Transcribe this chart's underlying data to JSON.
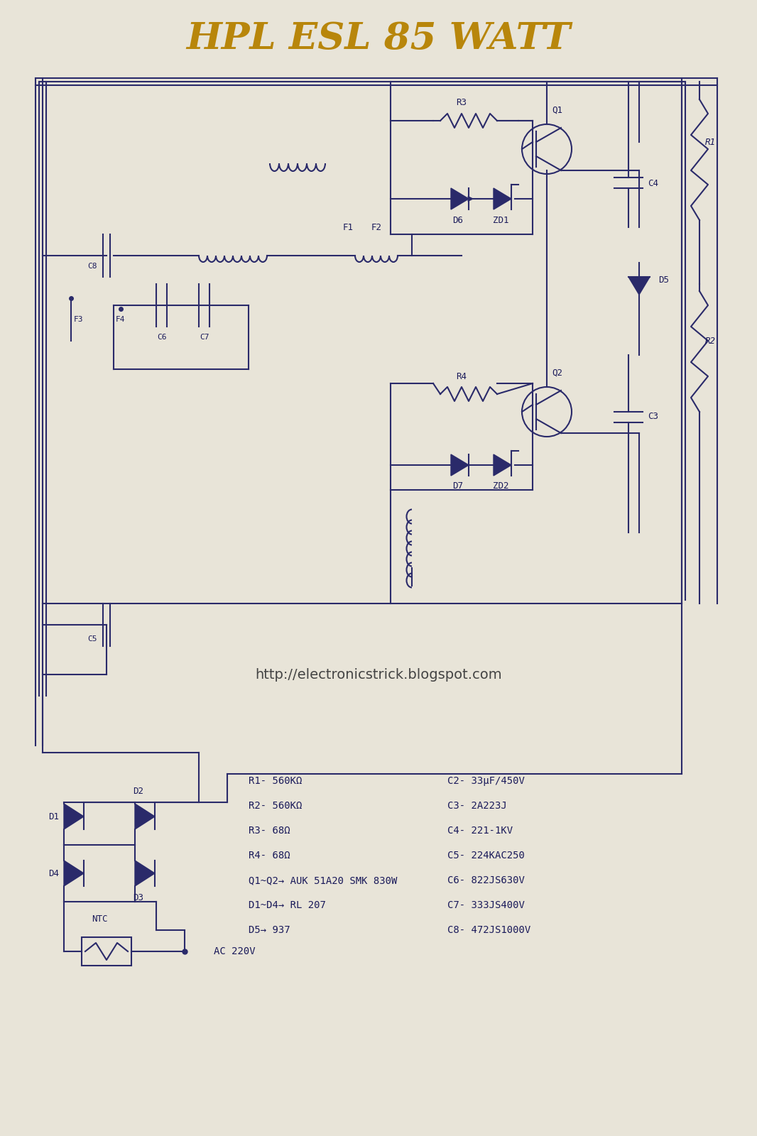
{
  "title": "HPL ESL 85 WATT",
  "title_color": "#b8860b",
  "title_italic": true,
  "bg_color": "#e8e4d8",
  "line_color": "#2a2a6a",
  "text_color": "#1a1a5a",
  "url_text": "http://electronicstrick.blogspot.com",
  "component_list_left": [
    "R1- 560KΩ",
    "R2- 560KΩ",
    "R3- 68Ω",
    "R4- 68Ω"
  ],
  "component_list_right": [
    "C2- 33μF/450V",
    "C3- 2A223J",
    "C4- 221-1KV",
    "C5- 224KAC250",
    "C6- 822JS630V",
    "C7- 333JS400V",
    "C8- 472JS1000V"
  ],
  "component_list_bottom": [
    "Q1~Q2→ AUK 51A20 SMK 830W",
    "D1~D4→ RL 207",
    "D5→ 937"
  ],
  "ac_label": "AC 220V",
  "ntc_label": "NTC"
}
